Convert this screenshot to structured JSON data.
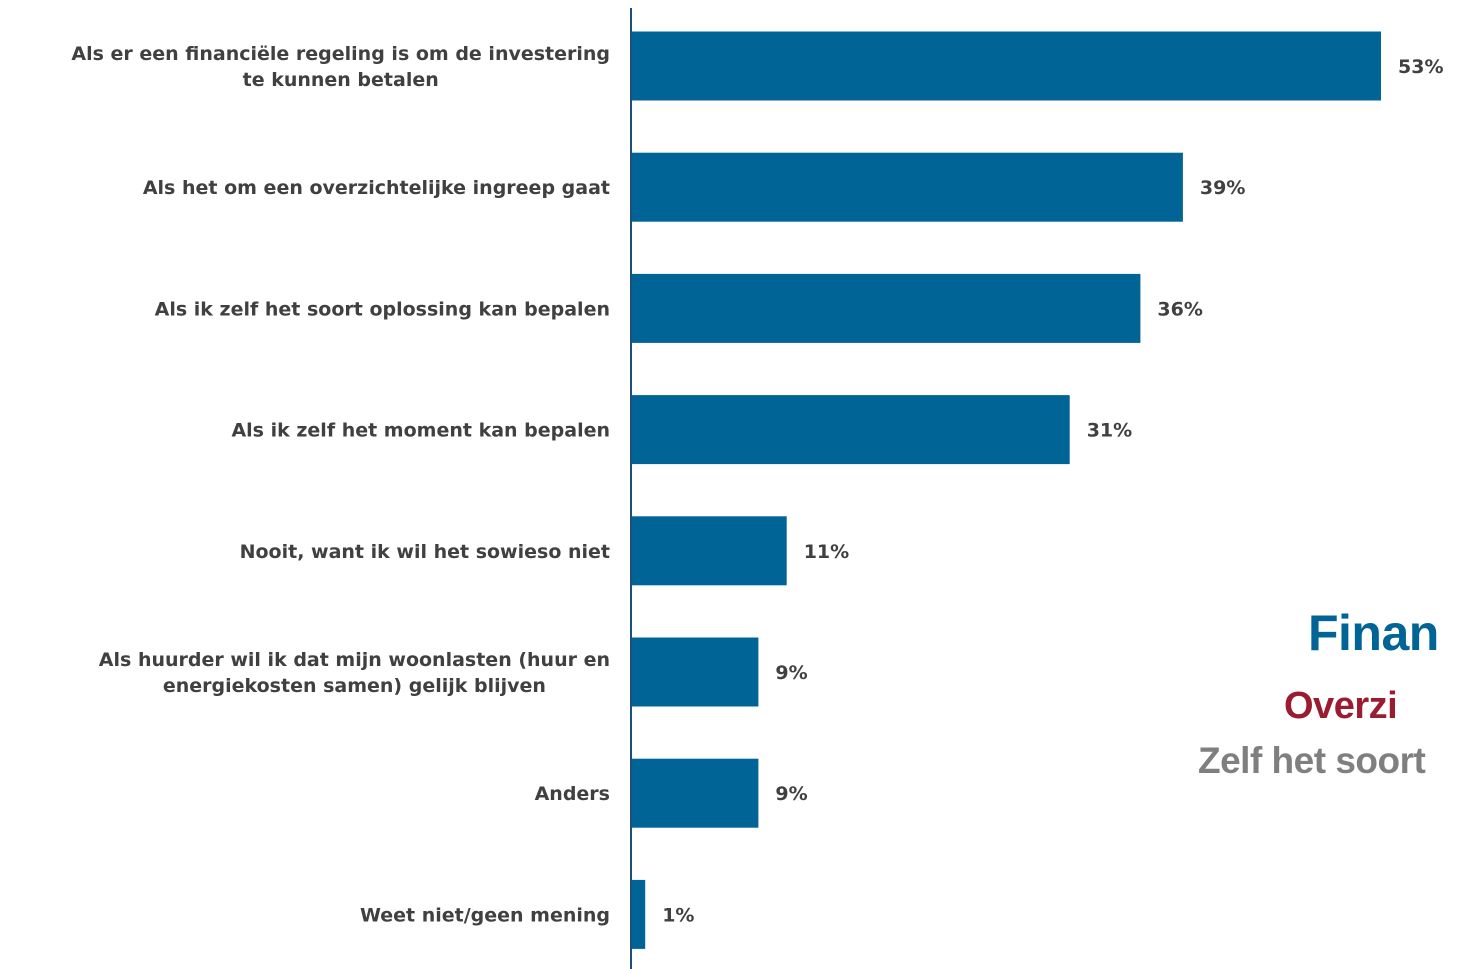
{
  "chart_data": {
    "type": "bar",
    "orientation": "horizontal",
    "categories": [
      [
        "Als er een financiële regeling is om de investering",
        "te kunnen betalen"
      ],
      [
        "Als het om een overzichtelijke ingreep gaat"
      ],
      [
        "Als ik zelf het soort oplossing kan bepalen"
      ],
      [
        "Als ik zelf het moment kan bepalen"
      ],
      [
        "Nooit, want ik wil het sowieso niet"
      ],
      [
        "Als huurder wil ik dat mijn woonlasten (huur en",
        "energiekosten samen) gelijk blijven"
      ],
      [
        "Anders"
      ],
      [
        "Weet niet/geen mening"
      ]
    ],
    "values": [
      53,
      39,
      36,
      31,
      11,
      9,
      9,
      1
    ],
    "value_labels": [
      "53%",
      "39%",
      "36%",
      "31%",
      "11%",
      "9%",
      "9%",
      "1%"
    ],
    "bar_color": "#006496",
    "axis_color": "#1f4e79",
    "label_color": "#404040",
    "title": "",
    "xlabel": "",
    "ylabel": "",
    "grid": false,
    "legend": "none"
  },
  "word_cloud": [
    {
      "text": "Finan",
      "color": "#006496"
    },
    {
      "text": "Overzi",
      "color": "#9b1c31"
    },
    {
      "text": "Zelf het soort",
      "color": "#7f7f7f"
    }
  ]
}
